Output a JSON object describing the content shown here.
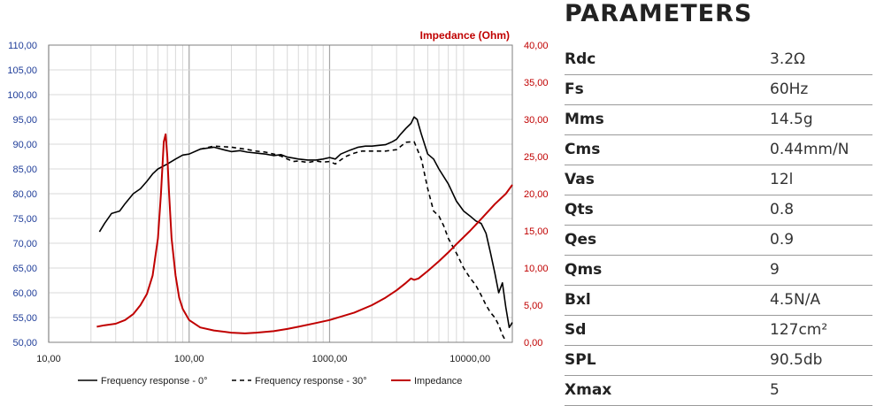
{
  "chart_data": {
    "type": "line",
    "title": "",
    "xlabel": "",
    "ylabel": "",
    "y2label": "Impedance (Ohm)",
    "x_scale": "log",
    "xlim": [
      10,
      20000
    ],
    "ylim": [
      50,
      110
    ],
    "y2lim": [
      0,
      40
    ],
    "grid": true,
    "legend_position": "bottom",
    "x_ticks": [
      "10,00",
      "100,00",
      "1000,00",
      "10000,00"
    ],
    "y_ticks": [
      "50,00",
      "55,00",
      "60,00",
      "65,00",
      "70,00",
      "75,00",
      "80,00",
      "85,00",
      "90,00",
      "95,00",
      "100,00",
      "105,00",
      "110,00"
    ],
    "y2_ticks": [
      "0,00",
      "5,00",
      "10,00",
      "15,00",
      "20,00",
      "25,00",
      "30,00",
      "35,00",
      "40,00"
    ],
    "series": [
      {
        "name": "Frequency response - 0°",
        "axis": "left",
        "color": "#000000",
        "dash": "solid",
        "points": [
          [
            23,
            72.3
          ],
          [
            25,
            74
          ],
          [
            28,
            76
          ],
          [
            32,
            76.5
          ],
          [
            35,
            78
          ],
          [
            40,
            80
          ],
          [
            45,
            81
          ],
          [
            50,
            82.5
          ],
          [
            55,
            84
          ],
          [
            60,
            85
          ],
          [
            70,
            86
          ],
          [
            80,
            87
          ],
          [
            90,
            87.8
          ],
          [
            100,
            88
          ],
          [
            120,
            89
          ],
          [
            150,
            89.4
          ],
          [
            180,
            88.8
          ],
          [
            200,
            88.5
          ],
          [
            230,
            88.7
          ],
          [
            260,
            88.4
          ],
          [
            300,
            88.2
          ],
          [
            350,
            88
          ],
          [
            400,
            87.7
          ],
          [
            450,
            87.9
          ],
          [
            500,
            87.4
          ],
          [
            550,
            87.2
          ],
          [
            600,
            87
          ],
          [
            700,
            86.8
          ],
          [
            800,
            86.8
          ],
          [
            900,
            87
          ],
          [
            1000,
            87.3
          ],
          [
            1100,
            87
          ],
          [
            1200,
            88
          ],
          [
            1400,
            88.8
          ],
          [
            1600,
            89.4
          ],
          [
            1800,
            89.6
          ],
          [
            2000,
            89.6
          ],
          [
            2500,
            89.9
          ],
          [
            2800,
            90.5
          ],
          [
            3000,
            91
          ],
          [
            3200,
            92
          ],
          [
            3500,
            93.2
          ],
          [
            3800,
            94.2
          ],
          [
            4000,
            95.5
          ],
          [
            4200,
            95
          ],
          [
            4500,
            92
          ],
          [
            5000,
            88
          ],
          [
            5500,
            87
          ],
          [
            6000,
            85
          ],
          [
            7000,
            82
          ],
          [
            8000,
            78.5
          ],
          [
            9000,
            76.5
          ],
          [
            10000,
            75.5
          ],
          [
            11000,
            74.5
          ],
          [
            12000,
            74
          ],
          [
            13000,
            72
          ],
          [
            14000,
            68
          ],
          [
            15000,
            64
          ],
          [
            16000,
            60
          ],
          [
            17000,
            62
          ],
          [
            18000,
            57
          ],
          [
            19000,
            53
          ],
          [
            20000,
            54
          ]
        ]
      },
      {
        "name": "Frequency response - 30°",
        "axis": "left",
        "color": "#000000",
        "dash": "dashed",
        "points": [
          [
            120,
            89
          ],
          [
            150,
            89.6
          ],
          [
            200,
            89.4
          ],
          [
            250,
            89
          ],
          [
            300,
            88.6
          ],
          [
            350,
            88.4
          ],
          [
            400,
            88
          ],
          [
            450,
            87.6
          ],
          [
            500,
            87
          ],
          [
            550,
            86.5
          ],
          [
            600,
            86.6
          ],
          [
            700,
            86.3
          ],
          [
            800,
            86.6
          ],
          [
            900,
            86.4
          ],
          [
            1000,
            86.5
          ],
          [
            1100,
            86
          ],
          [
            1200,
            86.8
          ],
          [
            1300,
            87.5
          ],
          [
            1500,
            88.2
          ],
          [
            1700,
            88.6
          ],
          [
            2000,
            88.6
          ],
          [
            2500,
            88.6
          ],
          [
            3000,
            88.9
          ],
          [
            3500,
            90.4
          ],
          [
            4000,
            90.5
          ],
          [
            4500,
            87
          ],
          [
            5000,
            81
          ],
          [
            5500,
            76.5
          ],
          [
            6000,
            75.5
          ],
          [
            6500,
            73.5
          ],
          [
            7000,
            71
          ],
          [
            8000,
            68
          ],
          [
            9000,
            65
          ],
          [
            10000,
            63
          ],
          [
            11000,
            61.5
          ],
          [
            12000,
            59.5
          ],
          [
            13000,
            57.5
          ],
          [
            14000,
            56
          ],
          [
            15000,
            55
          ],
          [
            16000,
            53.5
          ],
          [
            17000,
            51.5
          ],
          [
            18000,
            50.2
          ]
        ]
      },
      {
        "name": "Impedance",
        "axis": "right",
        "color": "#c00000",
        "dash": "solid",
        "points": [
          [
            22,
            2.1
          ],
          [
            25,
            2.3
          ],
          [
            30,
            2.5
          ],
          [
            35,
            3
          ],
          [
            40,
            3.8
          ],
          [
            45,
            5
          ],
          [
            50,
            6.5
          ],
          [
            55,
            9
          ],
          [
            60,
            14
          ],
          [
            63,
            20
          ],
          [
            66,
            27
          ],
          [
            68,
            28
          ],
          [
            70,
            25
          ],
          [
            72,
            20
          ],
          [
            75,
            14
          ],
          [
            80,
            9
          ],
          [
            85,
            6
          ],
          [
            90,
            4.5
          ],
          [
            100,
            3
          ],
          [
            120,
            2
          ],
          [
            150,
            1.6
          ],
          [
            200,
            1.3
          ],
          [
            250,
            1.2
          ],
          [
            300,
            1.3
          ],
          [
            400,
            1.5
          ],
          [
            500,
            1.8
          ],
          [
            600,
            2.1
          ],
          [
            800,
            2.6
          ],
          [
            1000,
            3
          ],
          [
            1500,
            4
          ],
          [
            2000,
            5
          ],
          [
            2500,
            6
          ],
          [
            3000,
            7
          ],
          [
            3500,
            8
          ],
          [
            3800,
            8.6
          ],
          [
            4000,
            8.4
          ],
          [
            4300,
            8.6
          ],
          [
            5000,
            9.6
          ],
          [
            6000,
            10.9
          ],
          [
            7000,
            12.1
          ],
          [
            8000,
            13.2
          ],
          [
            10000,
            15
          ],
          [
            12000,
            16.6
          ],
          [
            15000,
            18.6
          ],
          [
            18000,
            20
          ],
          [
            20000,
            21.2
          ]
        ]
      }
    ]
  },
  "parameters": {
    "title": "PARAMETERS",
    "rows": [
      {
        "name": "Rdc",
        "value": "3.2Ω"
      },
      {
        "name": "Fs",
        "value": "60Hz"
      },
      {
        "name": "Mms",
        "value": "14.5g"
      },
      {
        "name": "Cms",
        "value": "0.44mm/N"
      },
      {
        "name": "Vas",
        "value": "12l"
      },
      {
        "name": "Qts",
        "value": "0.8"
      },
      {
        "name": "Qes",
        "value": "0.9"
      },
      {
        "name": "Qms",
        "value": "9"
      },
      {
        "name": "Bxl",
        "value": "4.5N/A"
      },
      {
        "name": "Sd",
        "value": "127cm²"
      },
      {
        "name": "SPL",
        "value": "90.5db"
      },
      {
        "name": "Xmax",
        "value": "5"
      }
    ]
  }
}
